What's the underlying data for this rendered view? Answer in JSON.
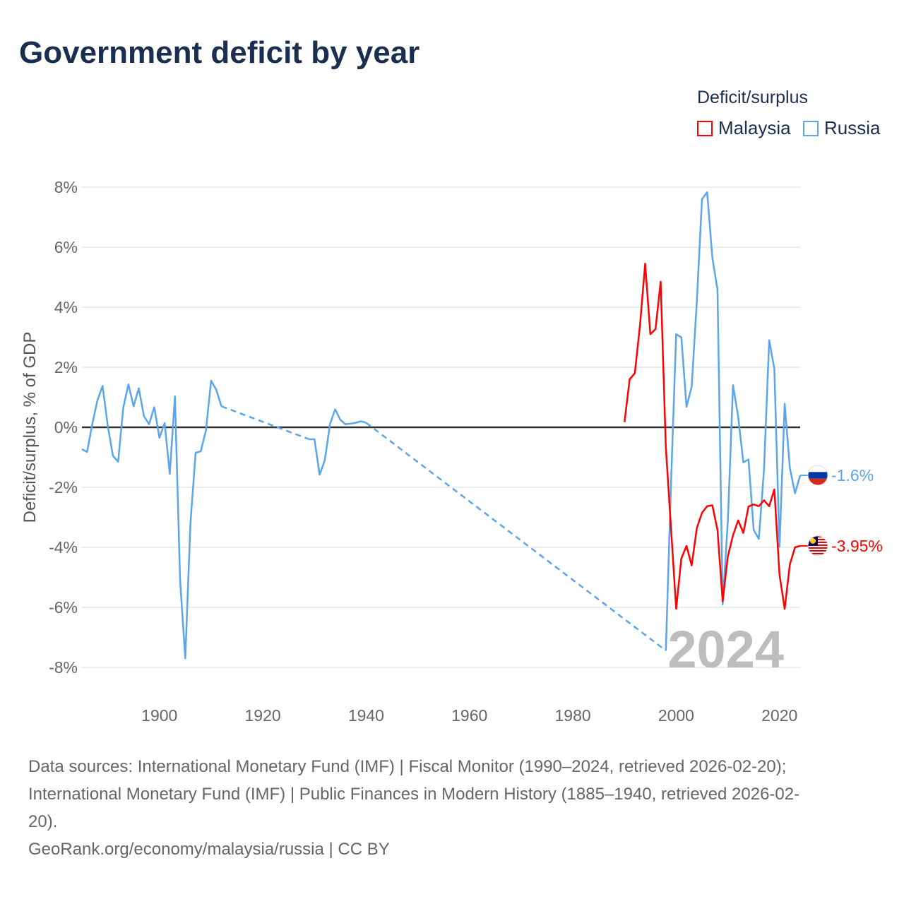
{
  "title": "Government deficit by year",
  "legend": {
    "title": "Deficit/surplus",
    "items": [
      {
        "name": "Malaysia",
        "color": "#ff0000"
      },
      {
        "name": "Russia",
        "color": "#5aa5eb"
      }
    ]
  },
  "watermark_year": "2024",
  "chart_data": {
    "type": "line",
    "title": "Government deficit by year",
    "xlabel": "",
    "ylabel": "Deficit/surplus, % of GDP",
    "xlim": [
      1885,
      2024
    ],
    "ylim": [
      -8,
      8
    ],
    "x_ticks": [
      1900,
      1920,
      1940,
      1960,
      1980,
      2000,
      2020
    ],
    "y_ticks": [
      -8,
      -6,
      -4,
      -2,
      0,
      2,
      4,
      6,
      8
    ],
    "y_tick_labels": [
      "-8%",
      "-6%",
      "-4%",
      "-2%",
      "0%",
      "2%",
      "4%",
      "6%",
      "8%"
    ],
    "grid": true,
    "legend_position": "top-right",
    "series": [
      {
        "name": "Russia",
        "color": "#5aa5eb",
        "end_label": "-1.6%",
        "x": [
          1885,
          1886,
          1887,
          1888,
          1889,
          1890,
          1891,
          1892,
          1893,
          1894,
          1895,
          1896,
          1897,
          1898,
          1899,
          1900,
          1901,
          1902,
          1903,
          1904,
          1905,
          1906,
          1907,
          1908,
          1909,
          1910,
          1911,
          1912,
          1929,
          1930,
          1931,
          1932,
          1933,
          1934,
          1935,
          1936,
          1937,
          1938,
          1939,
          1940,
          1998,
          1999,
          2000,
          2001,
          2002,
          2003,
          2004,
          2005,
          2006,
          2007,
          2008,
          2009,
          2010,
          2011,
          2012,
          2013,
          2014,
          2015,
          2016,
          2017,
          2018,
          2019,
          2020,
          2021,
          2022,
          2023,
          2024
        ],
        "y": [
          -0.73,
          -0.82,
          0.1,
          0.9,
          1.38,
          0.05,
          -0.95,
          -1.15,
          0.65,
          1.43,
          0.7,
          1.3,
          0.37,
          0.1,
          0.67,
          -0.35,
          0.14,
          -1.55,
          1.03,
          -5.1,
          -7.7,
          -3.2,
          -0.85,
          -0.8,
          -0.1,
          1.55,
          1.25,
          0.7,
          -0.4,
          -0.4,
          -1.58,
          -1.1,
          0.1,
          0.6,
          0.25,
          0.1,
          0.12,
          0.15,
          0.2,
          0.15,
          -7.44,
          -1.9,
          3.1,
          3.0,
          0.68,
          1.35,
          4.2,
          7.6,
          7.83,
          5.66,
          4.58,
          -5.9,
          -3.13,
          1.4,
          0.35,
          -1.17,
          -1.07,
          -3.42,
          -3.72,
          -1.4,
          2.9,
          1.95,
          -3.98,
          0.78,
          -1.35,
          -2.2,
          -1.6
        ]
      },
      {
        "name": "Malaysia",
        "color": "#ff0000",
        "end_label": "-3.95%",
        "x": [
          1990,
          1991,
          1992,
          1993,
          1994,
          1995,
          1996,
          1997,
          1998,
          1999,
          2000,
          2001,
          2002,
          2003,
          2004,
          2005,
          2006,
          2007,
          2008,
          2009,
          2010,
          2011,
          2012,
          2013,
          2014,
          2015,
          2016,
          2017,
          2018,
          2019,
          2020,
          2021,
          2022,
          2023,
          2024
        ],
        "y": [
          0.17,
          1.6,
          1.8,
          3.4,
          5.45,
          3.1,
          3.27,
          4.85,
          -0.67,
          -3.35,
          -6.05,
          -4.37,
          -3.95,
          -4.6,
          -3.36,
          -2.85,
          -2.63,
          -2.6,
          -3.42,
          -5.8,
          -4.3,
          -3.6,
          -3.1,
          -3.52,
          -2.64,
          -2.57,
          -2.63,
          -2.43,
          -2.63,
          -2.07,
          -4.92,
          -6.05,
          -4.57,
          -4.0,
          -3.95
        ]
      }
    ]
  },
  "footer": {
    "sources_line1": "Data sources: International Monetary Fund (IMF) | Fiscal Monitor (1990–2024, retrieved 2026-02-20);",
    "sources_line2": "International Monetary Fund (IMF) | Public Finances in Modern History (1885–1940, retrieved 2026-02-",
    "sources_line3": "20).",
    "credit": "GeoRank.org/economy/malaysia/russia | CC BY"
  }
}
